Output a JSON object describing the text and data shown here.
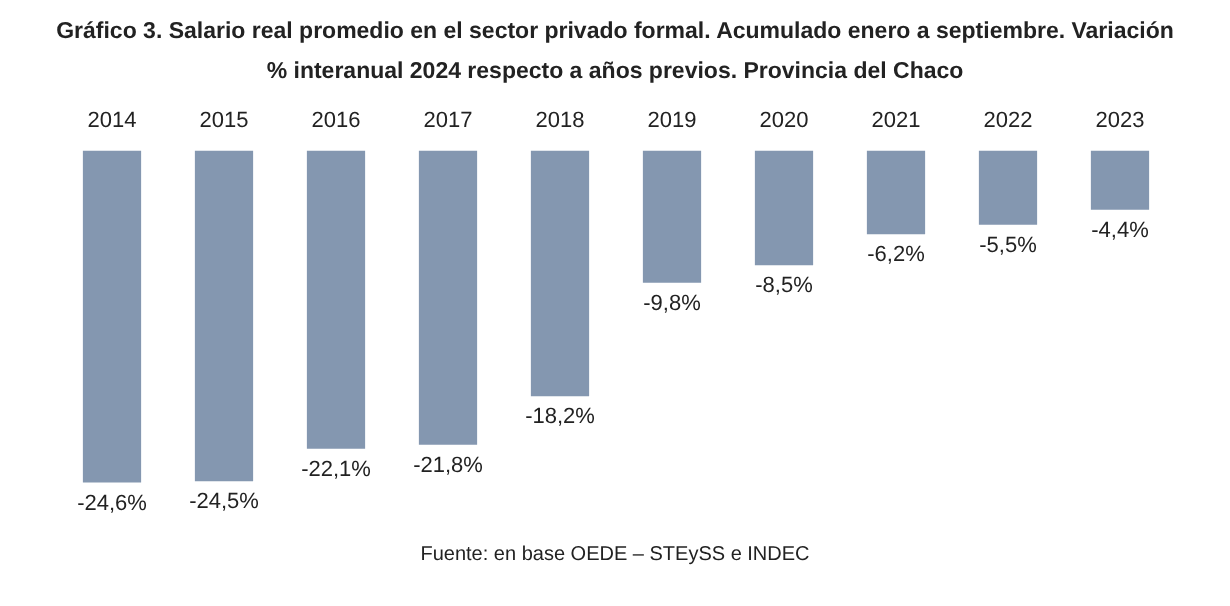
{
  "chart_data": {
    "type": "bar",
    "title": "Gráfico 3. Salario real promedio en el sector privado formal. Acumulado enero a septiembre. Variación % interanual 2024 respecto a años previos. Provincia del Chaco",
    "categories": [
      "2014",
      "2015",
      "2016",
      "2017",
      "2018",
      "2019",
      "2020",
      "2021",
      "2022",
      "2023"
    ],
    "values": [
      -24.6,
      -24.5,
      -22.1,
      -21.8,
      -18.2,
      -9.8,
      -8.5,
      -6.2,
      -5.5,
      -4.4
    ],
    "color": "#8497b0",
    "value_labels": [
      "-24,6%",
      "-24,5%",
      "-22,1%",
      "-21,8%",
      "-18,2%",
      "-9,8%",
      "-8,5%",
      "-6,2%",
      "-5,5%",
      "-4,4%"
    ],
    "tick_labels": "x",
    "grid": false,
    "legend": false,
    "annotations": [
      "Fuente: en base OEDE – STEySS e INDEC"
    ]
  }
}
